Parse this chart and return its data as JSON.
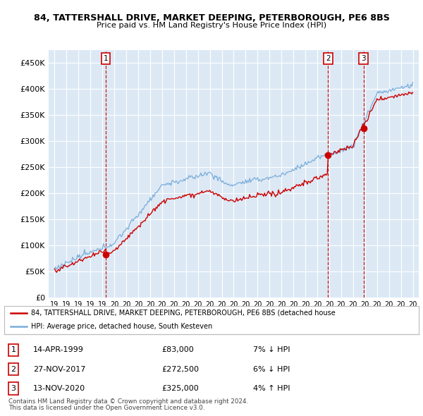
{
  "title1": "84, TATTERSHALL DRIVE, MARKET DEEPING, PETERBOROUGH, PE6 8BS",
  "title2": "Price paid vs. HM Land Registry's House Price Index (HPI)",
  "background_color": "#dce9f5",
  "grid_color": "#ffffff",
  "hpi_color": "#7aadda",
  "price_color": "#cc0000",
  "ylim_min": 0,
  "ylim_max": 475000,
  "yticks": [
    0,
    50000,
    100000,
    150000,
    200000,
    250000,
    300000,
    350000,
    400000,
    450000
  ],
  "ytick_labels": [
    "£0",
    "£50K",
    "£100K",
    "£150K",
    "£200K",
    "£250K",
    "£300K",
    "£350K",
    "£400K",
    "£450K"
  ],
  "sale_dates": [
    1999.29,
    2017.9,
    2020.87
  ],
  "sale_prices": [
    83000,
    272500,
    325000
  ],
  "vline_color": "#cc0000",
  "legend_line1": "84, TATTERSHALL DRIVE, MARKET DEEPING, PETERBOROUGH, PE6 8BS (detached house",
  "legend_line2": "HPI: Average price, detached house, South Kesteven",
  "table": [
    {
      "num": "1",
      "date": "14-APR-1999",
      "price": "£83,000",
      "hpi": "7% ↓ HPI"
    },
    {
      "num": "2",
      "date": "27-NOV-2017",
      "price": "£272,500",
      "hpi": "6% ↓ HPI"
    },
    {
      "num": "3",
      "date": "13-NOV-2020",
      "price": "£325,000",
      "hpi": "4% ↑ HPI"
    }
  ],
  "footer1": "Contains HM Land Registry data © Crown copyright and database right 2024.",
  "footer2": "This data is licensed under the Open Government Licence v3.0.",
  "xlim_min": 1994.5,
  "xlim_max": 2025.5
}
